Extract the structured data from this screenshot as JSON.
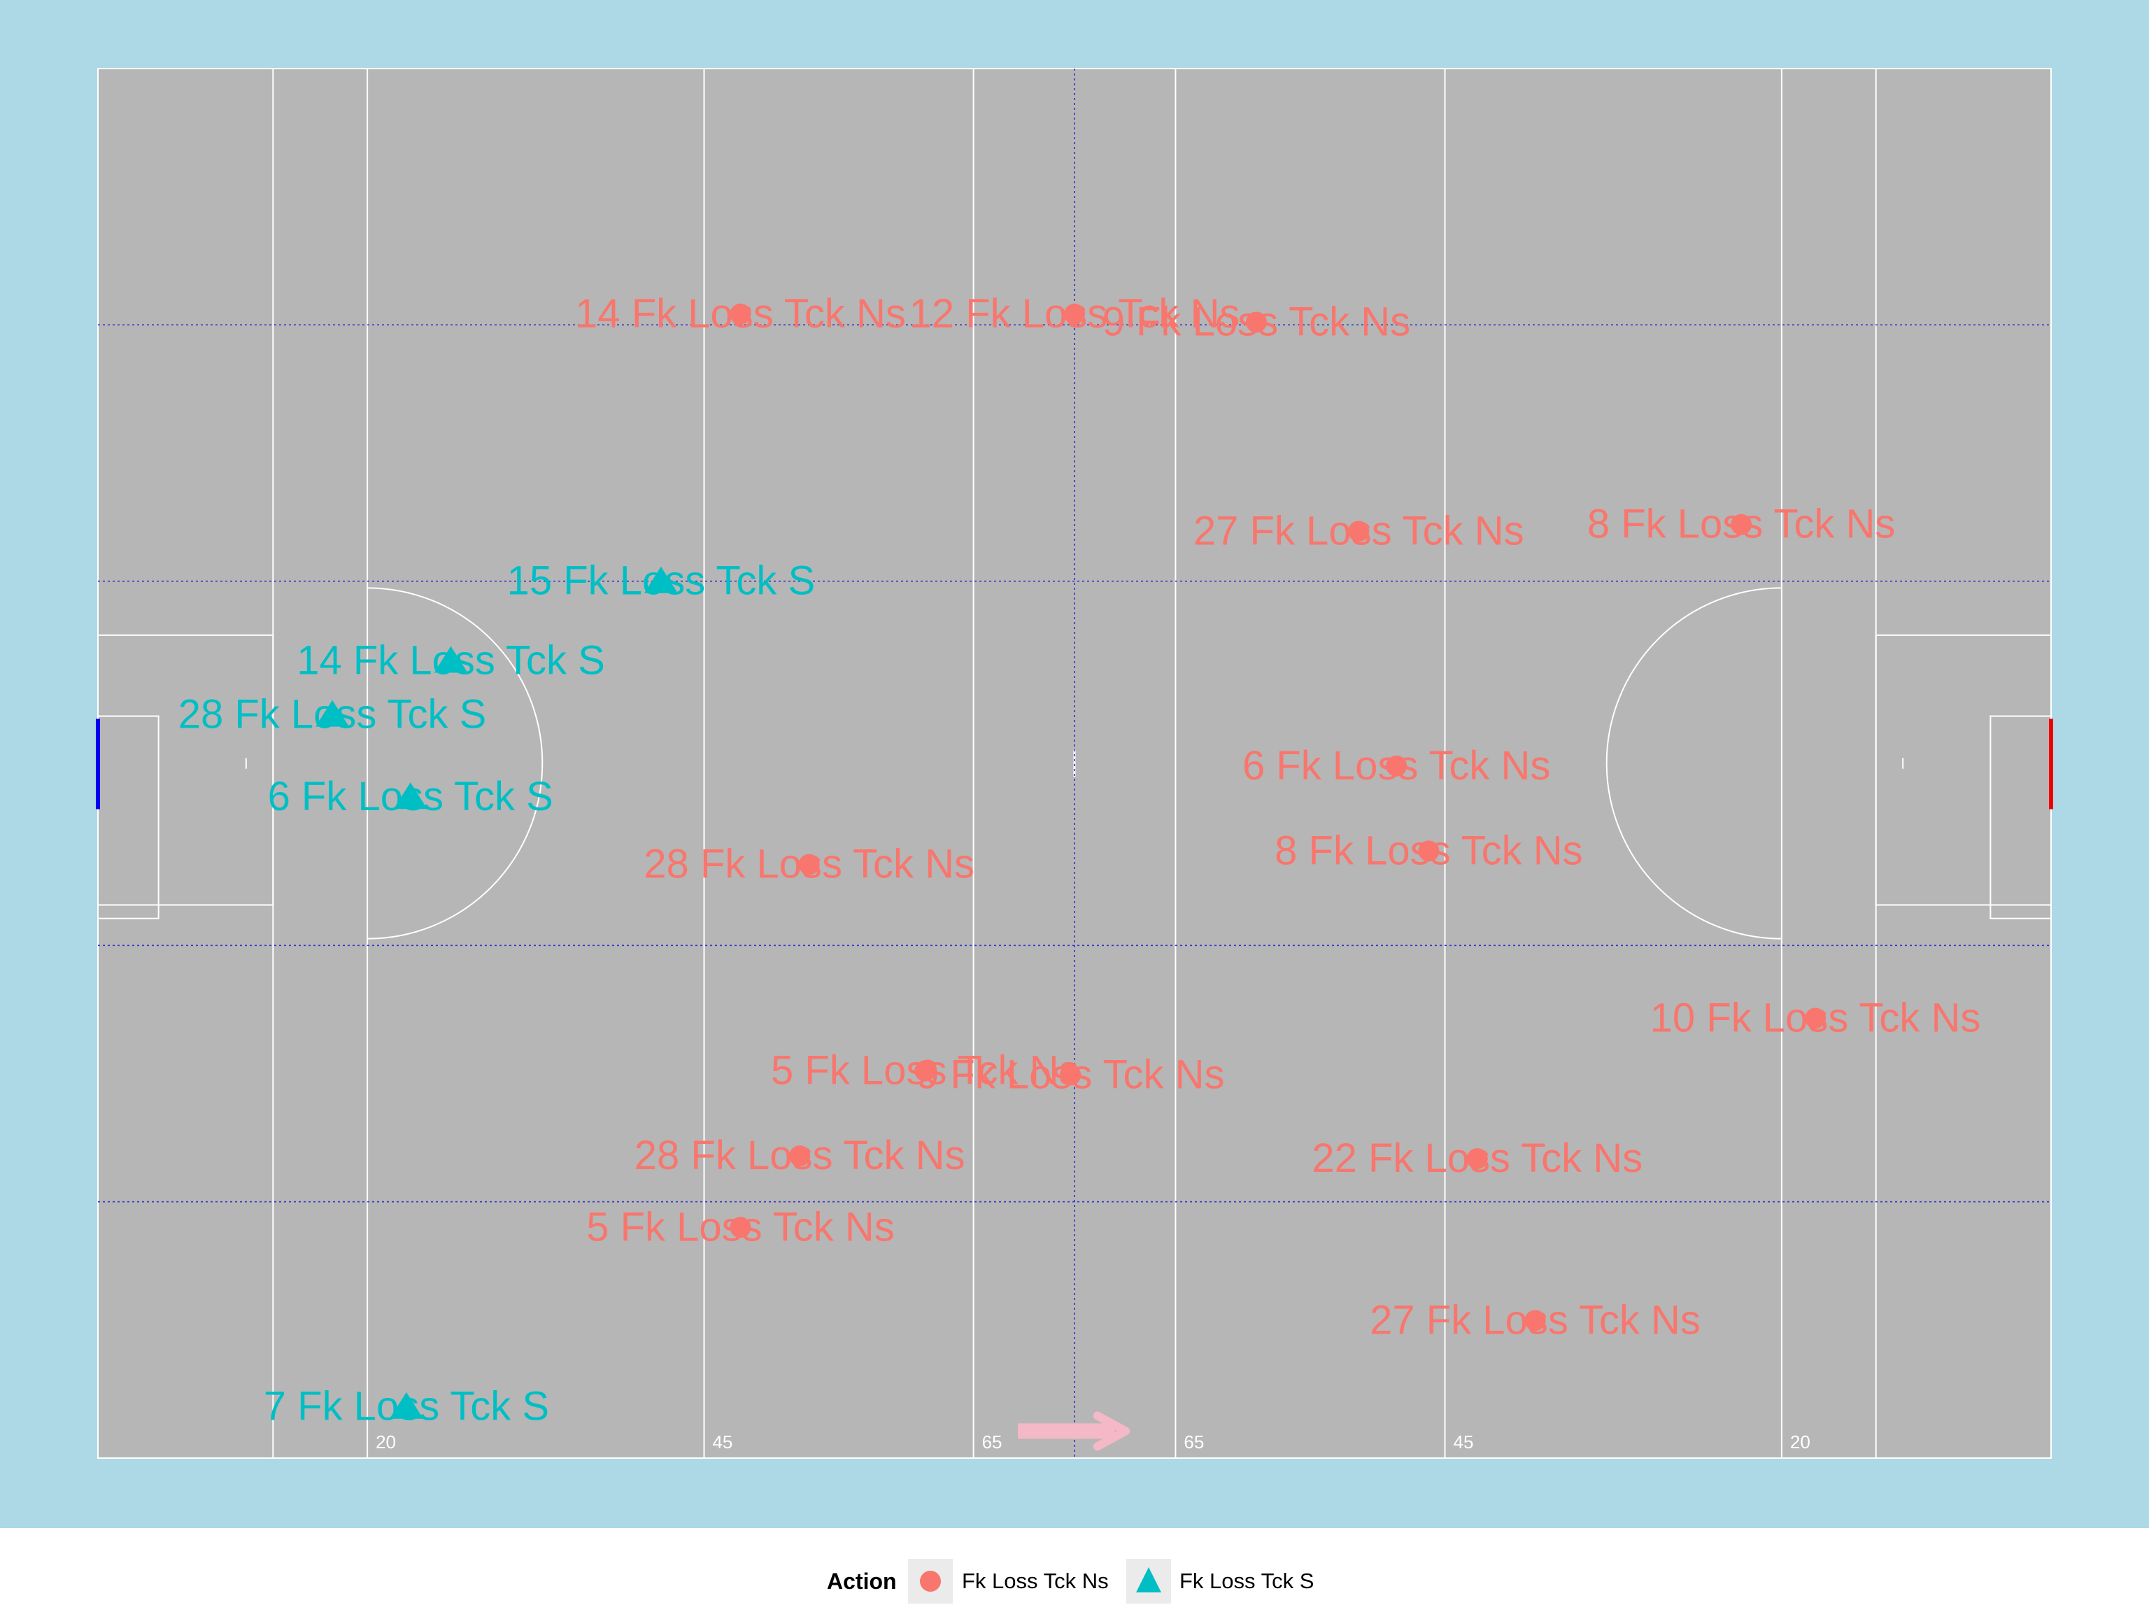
{
  "chart_data": {
    "type": "scatter",
    "title": "",
    "xlabel": "",
    "ylabel": "",
    "xlim": [
      0,
      145
    ],
    "ylim": [
      0,
      103
    ],
    "grid": false,
    "legend_position": "bottom",
    "legend_title": "Action",
    "pitch_line_labels": [
      "20",
      "45",
      "65",
      "65",
      "45",
      "20"
    ],
    "series": [
      {
        "name": "Fk Loss Tck Ns",
        "color": "#f8766d",
        "marker": "circle",
        "points": [
          {
            "x": 47.7,
            "y": 84.8,
            "label": "14 Fk Loss Tck Ns"
          },
          {
            "x": 72.5,
            "y": 84.8,
            "label": "12 Fk Loss Tck Ns"
          },
          {
            "x": 86.0,
            "y": 84.2,
            "label": "9 Fk Loss Tck Ns"
          },
          {
            "x": 93.6,
            "y": 68.7,
            "label": "27 Fk Loss Tck Ns"
          },
          {
            "x": 122.0,
            "y": 69.2,
            "label": "8 Fk Loss Tck Ns"
          },
          {
            "x": 96.4,
            "y": 51.3,
            "label": "6 Fk Loss Tck Ns"
          },
          {
            "x": 98.8,
            "y": 45.0,
            "label": "8 Fk Loss Tck Ns"
          },
          {
            "x": 52.8,
            "y": 44.0,
            "label": "28 Fk Loss Tck Ns"
          },
          {
            "x": 127.5,
            "y": 32.6,
            "label": "10 Fk Loss Tck Ns"
          },
          {
            "x": 61.4,
            "y": 28.7,
            "label": "5 Fk Loss Tck Ns"
          },
          {
            "x": 72.2,
            "y": 28.4,
            "label": "9 Fk Loss Tck Ns"
          },
          {
            "x": 52.1,
            "y": 22.4,
            "label": "28 Fk Loss Tck Ns"
          },
          {
            "x": 102.4,
            "y": 22.2,
            "label": "22 Fk Loss Tck Ns"
          },
          {
            "x": 47.7,
            "y": 17.1,
            "label": "5 Fk Loss Tck Ns"
          },
          {
            "x": 106.7,
            "y": 10.2,
            "label": "27 Fk Loss Tck Ns"
          }
        ]
      },
      {
        "name": "Fk Loss Tck S",
        "color": "#00bfc4",
        "marker": "triangle",
        "points": [
          {
            "x": 41.8,
            "y": 65.0,
            "label": "15 Fk Loss Tck S"
          },
          {
            "x": 26.2,
            "y": 59.1,
            "label": "14 Fk Loss Tck S"
          },
          {
            "x": 17.4,
            "y": 55.1,
            "label": "28 Fk Loss Tck S"
          },
          {
            "x": 23.2,
            "y": 49.0,
            "label": "6 Fk Loss Tck S"
          },
          {
            "x": 22.9,
            "y": 3.8,
            "label": "7 Fk Loss Tck S"
          }
        ]
      }
    ]
  },
  "colors": {
    "background": "#add8e6",
    "pitch": "#b6b6b6",
    "pitch_lines": "#ffffff",
    "guide_lines": "#3333cc",
    "left_goal": "#0000ee",
    "right_goal": "#ee0000",
    "direction_arrow": "#f4b8c6"
  }
}
